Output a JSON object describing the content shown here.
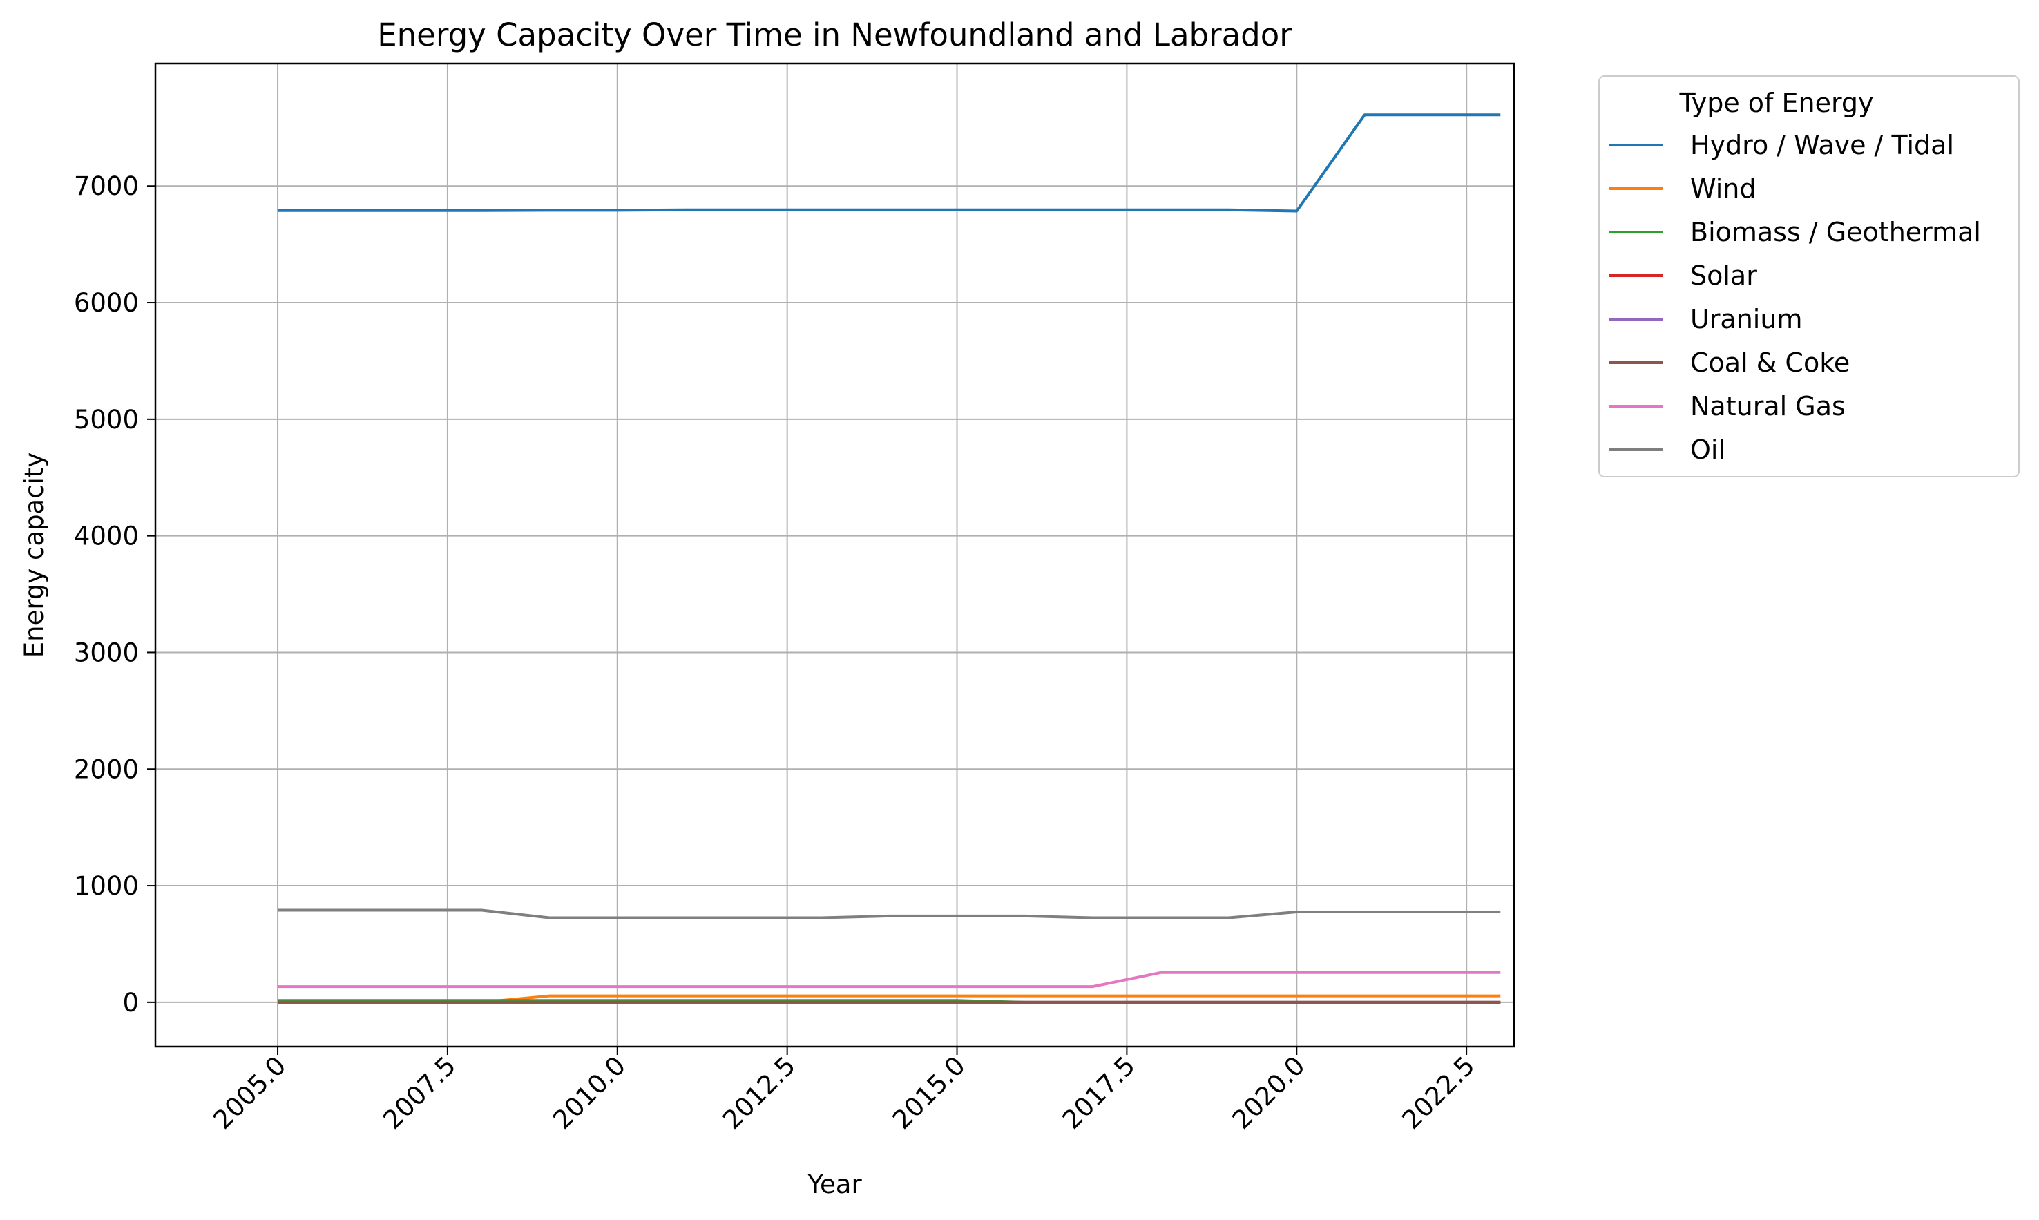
{
  "chart_data": {
    "type": "line",
    "title": "Energy Capacity Over Time in Newfoundland and Labrador",
    "xlabel": "Year",
    "ylabel": "Energy capacity",
    "xlim": [
      2003.2,
      2023.2
    ],
    "ylim": [
      -380,
      8050
    ],
    "x_ticks": [
      2005.0,
      2007.5,
      2010.0,
      2012.5,
      2015.0,
      2017.5,
      2020.0,
      2022.5
    ],
    "x_tick_labels": [
      "2005.0",
      "2007.5",
      "2010.0",
      "2012.5",
      "2015.0",
      "2017.5",
      "2020.0",
      "2022.5"
    ],
    "y_ticks": [
      0,
      1000,
      2000,
      3000,
      4000,
      5000,
      6000,
      7000
    ],
    "y_tick_labels": [
      "0",
      "1000",
      "2000",
      "3000",
      "4000",
      "5000",
      "6000",
      "7000"
    ],
    "grid": true,
    "legend": {
      "title": "Type of Energy",
      "placement": "outside-upper-right"
    },
    "x": [
      2005,
      2006,
      2007,
      2008,
      2009,
      2010,
      2011,
      2012,
      2013,
      2014,
      2015,
      2016,
      2017,
      2018,
      2019,
      2020,
      2021,
      2022,
      2023
    ],
    "series": [
      {
        "name": "Hydro / Wave / Tidal",
        "color": "#1f77b4",
        "values": [
          6790,
          6790,
          6790,
          6790,
          6792,
          6792,
          6795,
          6795,
          6795,
          6795,
          6795,
          6795,
          6795,
          6795,
          6795,
          6785,
          7610,
          7610,
          7610
        ]
      },
      {
        "name": "Wind",
        "color": "#ff7f0e",
        "values": [
          0,
          0,
          0,
          0,
          55,
          55,
          55,
          55,
          55,
          55,
          55,
          55,
          55,
          55,
          55,
          55,
          55,
          55,
          55
        ]
      },
      {
        "name": "Biomass / Geothermal",
        "color": "#2ca02c",
        "values": [
          15,
          15,
          15,
          15,
          15,
          15,
          15,
          15,
          15,
          15,
          15,
          0,
          0,
          0,
          0,
          0,
          0,
          0,
          0
        ]
      },
      {
        "name": "Solar",
        "color": "#d62728",
        "values": [
          0,
          0,
          0,
          0,
          0,
          0,
          0,
          0,
          0,
          0,
          0,
          0,
          0,
          0,
          0,
          0,
          0,
          0,
          0
        ]
      },
      {
        "name": "Uranium",
        "color": "#9467bd",
        "values": [
          0,
          0,
          0,
          0,
          0,
          0,
          0,
          0,
          0,
          0,
          0,
          0,
          0,
          0,
          0,
          0,
          0,
          0,
          0
        ]
      },
      {
        "name": "Coal & Coke",
        "color": "#8c564b",
        "values": [
          0,
          0,
          0,
          0,
          0,
          0,
          0,
          0,
          0,
          0,
          0,
          0,
          0,
          0,
          0,
          0,
          0,
          0,
          0
        ]
      },
      {
        "name": "Natural Gas",
        "color": "#e377c2",
        "values": [
          135,
          135,
          135,
          135,
          135,
          135,
          135,
          135,
          135,
          135,
          135,
          135,
          135,
          255,
          255,
          255,
          255,
          255,
          255
        ]
      },
      {
        "name": "Oil",
        "color": "#7f7f7f",
        "values": [
          790,
          790,
          790,
          790,
          725,
          725,
          725,
          725,
          725,
          740,
          740,
          740,
          725,
          725,
          725,
          775,
          775,
          775,
          775
        ]
      }
    ]
  }
}
